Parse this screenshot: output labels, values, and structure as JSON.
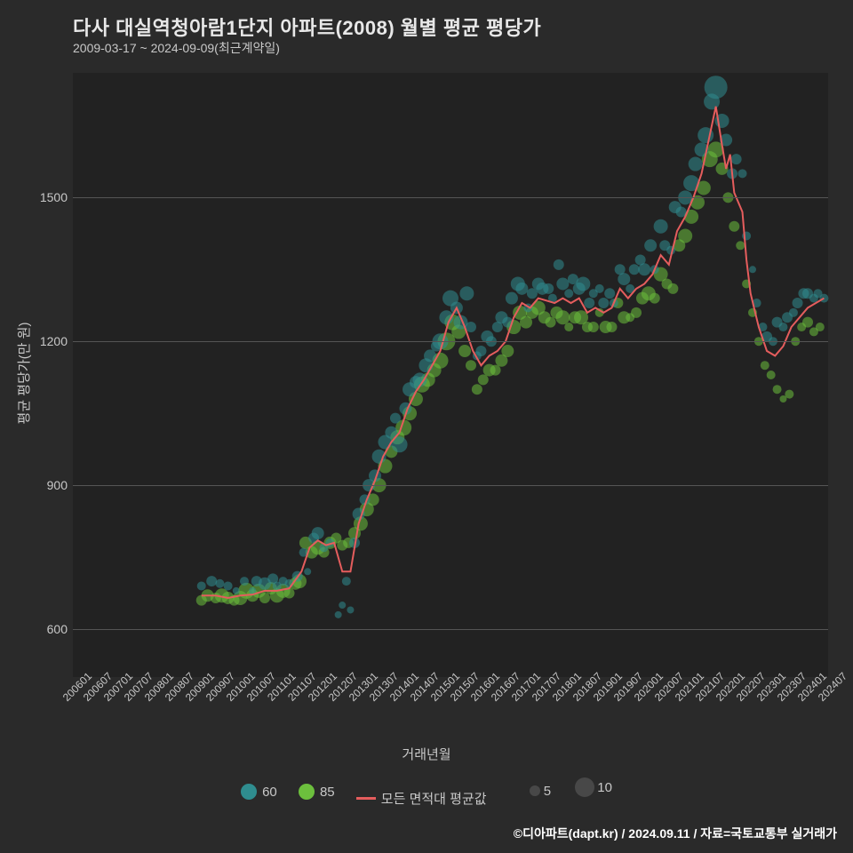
{
  "title": "다사 대실역청아람1단지 아파트(2008) 월별 평균 평당가",
  "subtitle": "2009-03-17 ~ 2024-09-09(최근계약일)",
  "y_label": "평균 평당가(만 원)",
  "x_label": "거래년월",
  "footer": "©디아파트(dapt.kr) / 2024.09.11 / 자료=국토교통부 실거래가",
  "chart": {
    "type": "scatter+line",
    "background_color": "#222222",
    "page_background": "#2a2a2a",
    "grid_color": "#555555",
    "text_color": "#c8c8c8",
    "title_fontsize": 22,
    "label_fontsize": 15,
    "tick_fontsize": 13,
    "x_ticks": [
      "200601",
      "200607",
      "200701",
      "200707",
      "200801",
      "200807",
      "200901",
      "200907",
      "201001",
      "201007",
      "201101",
      "201107",
      "201201",
      "201207",
      "201301",
      "201307",
      "201401",
      "201407",
      "201501",
      "201507",
      "201601",
      "201607",
      "201701",
      "201707",
      "201801",
      "201807",
      "201901",
      "201907",
      "202001",
      "202007",
      "202101",
      "202107",
      "202201",
      "202207",
      "202301",
      "202307",
      "202401",
      "202407"
    ],
    "xlim": [
      0,
      37
    ],
    "ylim": [
      500,
      1760
    ],
    "y_ticks": [
      600,
      900,
      1200,
      1500
    ],
    "series60": {
      "label": "60",
      "color": "#2f8d8f",
      "points": [
        [
          6.3,
          690,
          5
        ],
        [
          6.8,
          700,
          6
        ],
        [
          7.2,
          695,
          5
        ],
        [
          7.6,
          690,
          5
        ],
        [
          8.0,
          680,
          4
        ],
        [
          8.4,
          700,
          5
        ],
        [
          8.8,
          680,
          4
        ],
        [
          9.0,
          700,
          6
        ],
        [
          9.4,
          695,
          7
        ],
        [
          9.8,
          705,
          6
        ],
        [
          10.0,
          690,
          5
        ],
        [
          10.3,
          700,
          5
        ],
        [
          10.6,
          695,
          5
        ],
        [
          11.0,
          710,
          6
        ],
        [
          11.3,
          760,
          5
        ],
        [
          11.5,
          720,
          4
        ],
        [
          11.8,
          790,
          6
        ],
        [
          12.0,
          800,
          7
        ],
        [
          12.3,
          770,
          5
        ],
        [
          12.6,
          780,
          5
        ],
        [
          13.0,
          630,
          4
        ],
        [
          13.2,
          650,
          4
        ],
        [
          13.4,
          700,
          5
        ],
        [
          13.6,
          640,
          4
        ],
        [
          13.8,
          780,
          6
        ],
        [
          14.0,
          840,
          7
        ],
        [
          14.3,
          870,
          6
        ],
        [
          14.5,
          900,
          7
        ],
        [
          14.8,
          920,
          7
        ],
        [
          15.0,
          960,
          8
        ],
        [
          15.3,
          990,
          8
        ],
        [
          15.6,
          1010,
          7
        ],
        [
          15.8,
          1040,
          6
        ],
        [
          16.0,
          985,
          9
        ],
        [
          16.3,
          1060,
          7
        ],
        [
          16.5,
          1100,
          8
        ],
        [
          16.8,
          1115,
          7
        ],
        [
          17.0,
          1120,
          8
        ],
        [
          17.3,
          1150,
          8
        ],
        [
          17.5,
          1170,
          7
        ],
        [
          17.8,
          1190,
          6
        ],
        [
          18.0,
          1200,
          9
        ],
        [
          18.3,
          1250,
          8
        ],
        [
          18.5,
          1290,
          9
        ],
        [
          18.8,
          1270,
          7
        ],
        [
          19.0,
          1240,
          8
        ],
        [
          19.3,
          1300,
          8
        ],
        [
          19.5,
          1230,
          6
        ],
        [
          19.8,
          1170,
          5
        ],
        [
          20.0,
          1180,
          6
        ],
        [
          20.3,
          1210,
          7
        ],
        [
          20.5,
          1200,
          6
        ],
        [
          20.8,
          1230,
          6
        ],
        [
          21.0,
          1250,
          7
        ],
        [
          21.3,
          1240,
          6
        ],
        [
          21.5,
          1290,
          7
        ],
        [
          21.8,
          1320,
          8
        ],
        [
          22.0,
          1310,
          7
        ],
        [
          22.3,
          1270,
          5
        ],
        [
          22.5,
          1300,
          6
        ],
        [
          22.8,
          1320,
          7
        ],
        [
          23.0,
          1310,
          7
        ],
        [
          23.3,
          1310,
          6
        ],
        [
          23.5,
          1290,
          5
        ],
        [
          23.8,
          1360,
          6
        ],
        [
          24.0,
          1320,
          7
        ],
        [
          24.3,
          1300,
          5
        ],
        [
          24.5,
          1330,
          6
        ],
        [
          24.8,
          1310,
          7
        ],
        [
          25.0,
          1320,
          8
        ],
        [
          25.3,
          1280,
          6
        ],
        [
          25.5,
          1300,
          5
        ],
        [
          25.8,
          1310,
          5
        ],
        [
          26.0,
          1280,
          6
        ],
        [
          26.3,
          1300,
          6
        ],
        [
          26.5,
          1280,
          5
        ],
        [
          26.8,
          1350,
          6
        ],
        [
          27.0,
          1330,
          7
        ],
        [
          27.3,
          1310,
          5
        ],
        [
          27.5,
          1350,
          6
        ],
        [
          27.8,
          1370,
          6
        ],
        [
          28.0,
          1350,
          7
        ],
        [
          28.3,
          1400,
          7
        ],
        [
          28.5,
          1350,
          5
        ],
        [
          28.8,
          1440,
          8
        ],
        [
          29.0,
          1400,
          6
        ],
        [
          29.3,
          1390,
          5
        ],
        [
          29.5,
          1480,
          7
        ],
        [
          29.8,
          1470,
          6
        ],
        [
          30.0,
          1500,
          8
        ],
        [
          30.3,
          1530,
          9
        ],
        [
          30.5,
          1570,
          8
        ],
        [
          30.8,
          1600,
          8
        ],
        [
          31.0,
          1630,
          9
        ],
        [
          31.3,
          1700,
          9
        ],
        [
          31.5,
          1730,
          13
        ],
        [
          31.8,
          1660,
          8
        ],
        [
          32.0,
          1620,
          7
        ],
        [
          32.3,
          1550,
          6
        ],
        [
          32.5,
          1580,
          6
        ],
        [
          32.8,
          1550,
          5
        ],
        [
          33.0,
          1420,
          5
        ],
        [
          33.3,
          1350,
          4
        ],
        [
          33.5,
          1280,
          5
        ],
        [
          33.8,
          1230,
          5
        ],
        [
          34.0,
          1210,
          6
        ],
        [
          34.3,
          1200,
          5
        ],
        [
          34.5,
          1240,
          6
        ],
        [
          34.8,
          1230,
          5
        ],
        [
          35.0,
          1250,
          6
        ],
        [
          35.3,
          1260,
          5
        ],
        [
          35.5,
          1280,
          6
        ],
        [
          35.8,
          1300,
          6
        ],
        [
          36.0,
          1300,
          6
        ],
        [
          36.3,
          1290,
          5
        ],
        [
          36.5,
          1300,
          5
        ],
        [
          36.8,
          1290,
          5
        ]
      ]
    },
    "series85": {
      "label": "85",
      "color": "#6cbf3d",
      "points": [
        [
          6.3,
          660,
          6
        ],
        [
          6.6,
          670,
          7
        ],
        [
          7.0,
          665,
          6
        ],
        [
          7.3,
          670,
          8
        ],
        [
          7.6,
          665,
          7
        ],
        [
          7.9,
          660,
          6
        ],
        [
          8.2,
          665,
          8
        ],
        [
          8.5,
          680,
          9
        ],
        [
          8.8,
          670,
          7
        ],
        [
          9.1,
          680,
          8
        ],
        [
          9.4,
          665,
          6
        ],
        [
          9.7,
          685,
          7
        ],
        [
          10.0,
          670,
          8
        ],
        [
          10.3,
          680,
          8
        ],
        [
          10.6,
          675,
          6
        ],
        [
          10.9,
          695,
          7
        ],
        [
          11.1,
          700,
          8
        ],
        [
          11.4,
          780,
          7
        ],
        [
          11.7,
          760,
          7
        ],
        [
          12.0,
          770,
          8
        ],
        [
          12.3,
          760,
          6
        ],
        [
          12.6,
          780,
          7
        ],
        [
          12.9,
          790,
          6
        ],
        [
          13.2,
          775,
          6
        ],
        [
          13.5,
          780,
          6
        ],
        [
          13.8,
          800,
          7
        ],
        [
          14.1,
          820,
          8
        ],
        [
          14.4,
          850,
          8
        ],
        [
          14.7,
          870,
          7
        ],
        [
          15.0,
          900,
          8
        ],
        [
          15.3,
          940,
          8
        ],
        [
          15.6,
          970,
          7
        ],
        [
          15.9,
          1000,
          8
        ],
        [
          16.2,
          1020,
          9
        ],
        [
          16.5,
          1050,
          8
        ],
        [
          16.8,
          1080,
          8
        ],
        [
          17.1,
          1110,
          9
        ],
        [
          17.4,
          1120,
          8
        ],
        [
          17.7,
          1140,
          8
        ],
        [
          18.0,
          1160,
          9
        ],
        [
          18.3,
          1200,
          10
        ],
        [
          18.6,
          1240,
          9
        ],
        [
          18.9,
          1220,
          8
        ],
        [
          19.2,
          1180,
          7
        ],
        [
          19.5,
          1150,
          6
        ],
        [
          19.8,
          1100,
          6
        ],
        [
          20.1,
          1120,
          6
        ],
        [
          20.4,
          1140,
          7
        ],
        [
          20.7,
          1140,
          6
        ],
        [
          21.0,
          1160,
          7
        ],
        [
          21.3,
          1180,
          7
        ],
        [
          21.6,
          1230,
          8
        ],
        [
          21.9,
          1260,
          8
        ],
        [
          22.2,
          1240,
          7
        ],
        [
          22.5,
          1260,
          7
        ],
        [
          22.8,
          1270,
          8
        ],
        [
          23.1,
          1250,
          7
        ],
        [
          23.4,
          1240,
          6
        ],
        [
          23.7,
          1260,
          7
        ],
        [
          24.0,
          1250,
          8
        ],
        [
          24.3,
          1230,
          5
        ],
        [
          24.6,
          1250,
          7
        ],
        [
          24.9,
          1250,
          8
        ],
        [
          25.2,
          1230,
          6
        ],
        [
          25.5,
          1230,
          6
        ],
        [
          25.8,
          1260,
          5
        ],
        [
          26.1,
          1230,
          7
        ],
        [
          26.4,
          1230,
          6
        ],
        [
          26.7,
          1280,
          6
        ],
        [
          27.0,
          1250,
          7
        ],
        [
          27.3,
          1250,
          5
        ],
        [
          27.6,
          1260,
          6
        ],
        [
          27.9,
          1290,
          7
        ],
        [
          28.2,
          1300,
          8
        ],
        [
          28.5,
          1290,
          6
        ],
        [
          28.8,
          1340,
          8
        ],
        [
          29.1,
          1320,
          6
        ],
        [
          29.4,
          1310,
          6
        ],
        [
          29.7,
          1400,
          7
        ],
        [
          30.0,
          1420,
          8
        ],
        [
          30.3,
          1460,
          8
        ],
        [
          30.6,
          1490,
          8
        ],
        [
          30.9,
          1520,
          8
        ],
        [
          31.2,
          1580,
          9
        ],
        [
          31.5,
          1600,
          9
        ],
        [
          31.8,
          1560,
          7
        ],
        [
          32.1,
          1500,
          6
        ],
        [
          32.4,
          1440,
          6
        ],
        [
          32.7,
          1400,
          5
        ],
        [
          33.0,
          1320,
          5
        ],
        [
          33.3,
          1260,
          5
        ],
        [
          33.6,
          1200,
          5
        ],
        [
          33.9,
          1150,
          5
        ],
        [
          34.2,
          1130,
          5
        ],
        [
          34.5,
          1100,
          5
        ],
        [
          34.8,
          1080,
          4
        ],
        [
          35.1,
          1090,
          5
        ],
        [
          35.4,
          1200,
          5
        ],
        [
          35.7,
          1230,
          5
        ],
        [
          36.0,
          1240,
          6
        ],
        [
          36.3,
          1220,
          5
        ],
        [
          36.6,
          1230,
          5
        ]
      ]
    },
    "avg_line": {
      "label": "모든 면적대 평균값",
      "color": "#e55d5d",
      "points": [
        [
          6.3,
          670
        ],
        [
          7.0,
          670
        ],
        [
          7.6,
          665
        ],
        [
          8.2,
          670
        ],
        [
          8.8,
          672
        ],
        [
          9.4,
          680
        ],
        [
          10.0,
          680
        ],
        [
          10.6,
          685
        ],
        [
          11.2,
          720
        ],
        [
          11.6,
          770
        ],
        [
          12.0,
          785
        ],
        [
          12.4,
          775
        ],
        [
          12.8,
          780
        ],
        [
          13.2,
          720
        ],
        [
          13.6,
          720
        ],
        [
          14.0,
          820
        ],
        [
          14.4,
          870
        ],
        [
          14.8,
          910
        ],
        [
          15.2,
          960
        ],
        [
          15.6,
          990
        ],
        [
          16.0,
          1010
        ],
        [
          16.4,
          1060
        ],
        [
          16.8,
          1095
        ],
        [
          17.2,
          1120
        ],
        [
          17.6,
          1150
        ],
        [
          18.0,
          1180
        ],
        [
          18.4,
          1240
        ],
        [
          18.8,
          1270
        ],
        [
          19.2,
          1230
        ],
        [
          19.6,
          1180
        ],
        [
          20.0,
          1150
        ],
        [
          20.4,
          1170
        ],
        [
          20.8,
          1180
        ],
        [
          21.2,
          1200
        ],
        [
          21.6,
          1250
        ],
        [
          22.0,
          1280
        ],
        [
          22.4,
          1270
        ],
        [
          22.8,
          1290
        ],
        [
          23.2,
          1285
        ],
        [
          23.6,
          1280
        ],
        [
          24.0,
          1290
        ],
        [
          24.4,
          1280
        ],
        [
          24.8,
          1290
        ],
        [
          25.2,
          1260
        ],
        [
          25.6,
          1270
        ],
        [
          26.0,
          1260
        ],
        [
          26.4,
          1270
        ],
        [
          26.8,
          1310
        ],
        [
          27.2,
          1290
        ],
        [
          27.6,
          1310
        ],
        [
          28.0,
          1320
        ],
        [
          28.4,
          1340
        ],
        [
          28.8,
          1380
        ],
        [
          29.2,
          1360
        ],
        [
          29.6,
          1430
        ],
        [
          30.0,
          1460
        ],
        [
          30.4,
          1500
        ],
        [
          30.8,
          1550
        ],
        [
          31.2,
          1630
        ],
        [
          31.5,
          1690
        ],
        [
          31.8,
          1610
        ],
        [
          32.0,
          1560
        ],
        [
          32.2,
          1590
        ],
        [
          32.4,
          1510
        ],
        [
          32.8,
          1470
        ],
        [
          33.0,
          1370
        ],
        [
          33.2,
          1300
        ],
        [
          33.6,
          1230
        ],
        [
          34.0,
          1180
        ],
        [
          34.4,
          1170
        ],
        [
          34.8,
          1190
        ],
        [
          35.2,
          1230
        ],
        [
          35.6,
          1250
        ],
        [
          36.0,
          1270
        ],
        [
          36.4,
          1280
        ],
        [
          36.8,
          1290
        ]
      ]
    },
    "size_legend": {
      "label_5": "5",
      "label_10": "10",
      "r5": 6,
      "r10": 11,
      "color": "#555555"
    }
  },
  "legend": {
    "items": [
      {
        "key": "60",
        "type": "swatch"
      },
      {
        "key": "85",
        "type": "swatch"
      },
      {
        "key": "avg",
        "type": "line"
      }
    ]
  }
}
